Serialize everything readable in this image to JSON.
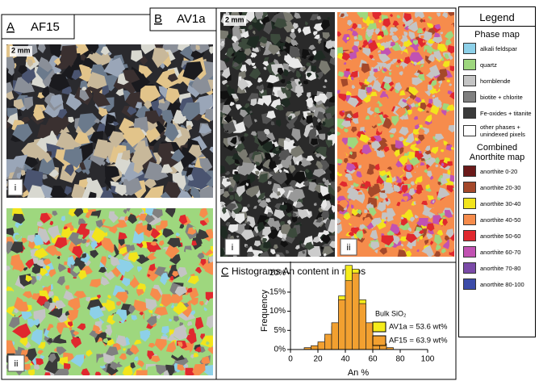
{
  "panel_a": {
    "letter": "A",
    "title": "AF15",
    "scale": "2 mm",
    "sub_i": "i",
    "sub_ii": "ii"
  },
  "panel_b": {
    "letter": "B",
    "title": "AV1a",
    "scale": "2 mm",
    "sub_i": "i",
    "sub_ii": "ii"
  },
  "legend": {
    "title": "Legend",
    "phase_title": "Phase map",
    "phases": [
      {
        "label": "alkali feldspar",
        "color": "#8dd0e8"
      },
      {
        "label": "quartz",
        "color": "#9ed77e"
      },
      {
        "label": "hornblende",
        "color": "#c4c4c4"
      },
      {
        "label": "biotite + chlorite",
        "color": "#808080"
      },
      {
        "label": "Fe-oxides + titanite",
        "color": "#3a3a3a"
      },
      {
        "label": "other phases + unindexed pixels",
        "color": "#ffffff"
      }
    ],
    "anorthite_title": "Combined Anorthite map",
    "anorthite": [
      {
        "label": "anorthite 0-20",
        "color": "#6b1a1a"
      },
      {
        "label": "anorthite 20-30",
        "color": "#a4482a"
      },
      {
        "label": "anorthite 30-40",
        "color": "#f2e41c"
      },
      {
        "label": "anorthite 40-50",
        "color": "#f68c4c"
      },
      {
        "label": "anorthite 50-60",
        "color": "#e0282e"
      },
      {
        "label": "anorthite 60-70",
        "color": "#c152b2"
      },
      {
        "label": "anorthite 70-80",
        "color": "#7b4ba8"
      },
      {
        "label": "anorthite 80-100",
        "color": "#3b4ba8"
      }
    ]
  },
  "chart_data": {
    "type": "histogram",
    "letter": "C",
    "title": "Histograms An content in maps",
    "xlabel": "An %",
    "ylabel": "Frequency",
    "legend_title": "Bulk SiO₂",
    "bins": [
      10,
      15,
      20,
      25,
      30,
      35,
      40,
      45,
      50,
      55,
      60,
      65,
      70,
      75
    ],
    "series": [
      {
        "name": "AV1a = 53.6 wt%",
        "color": "#f5ec1a",
        "values": [
          0,
          0.5,
          1.5,
          3,
          6,
          14,
          22,
          21,
          13,
          6,
          2,
          0.5,
          0
        ]
      },
      {
        "name": "AF15 = 63.9 wt%",
        "color": "#f2a030",
        "values": [
          0.5,
          1,
          2,
          4,
          7,
          13,
          18,
          20,
          12,
          7,
          3,
          1.5,
          0.5
        ]
      }
    ],
    "xlim": [
      0,
      100
    ],
    "xticks": [
      0,
      20,
      40,
      60,
      80,
      100
    ],
    "ylim": [
      0,
      23
    ],
    "yticks": [
      {
        "value": 0,
        "label": "0%"
      },
      {
        "value": 5,
        "label": "5%"
      },
      {
        "value": 10,
        "label": "10%"
      },
      {
        "value": 15,
        "label": "15%"
      },
      {
        "value": 20,
        "label": "20%"
      }
    ]
  }
}
